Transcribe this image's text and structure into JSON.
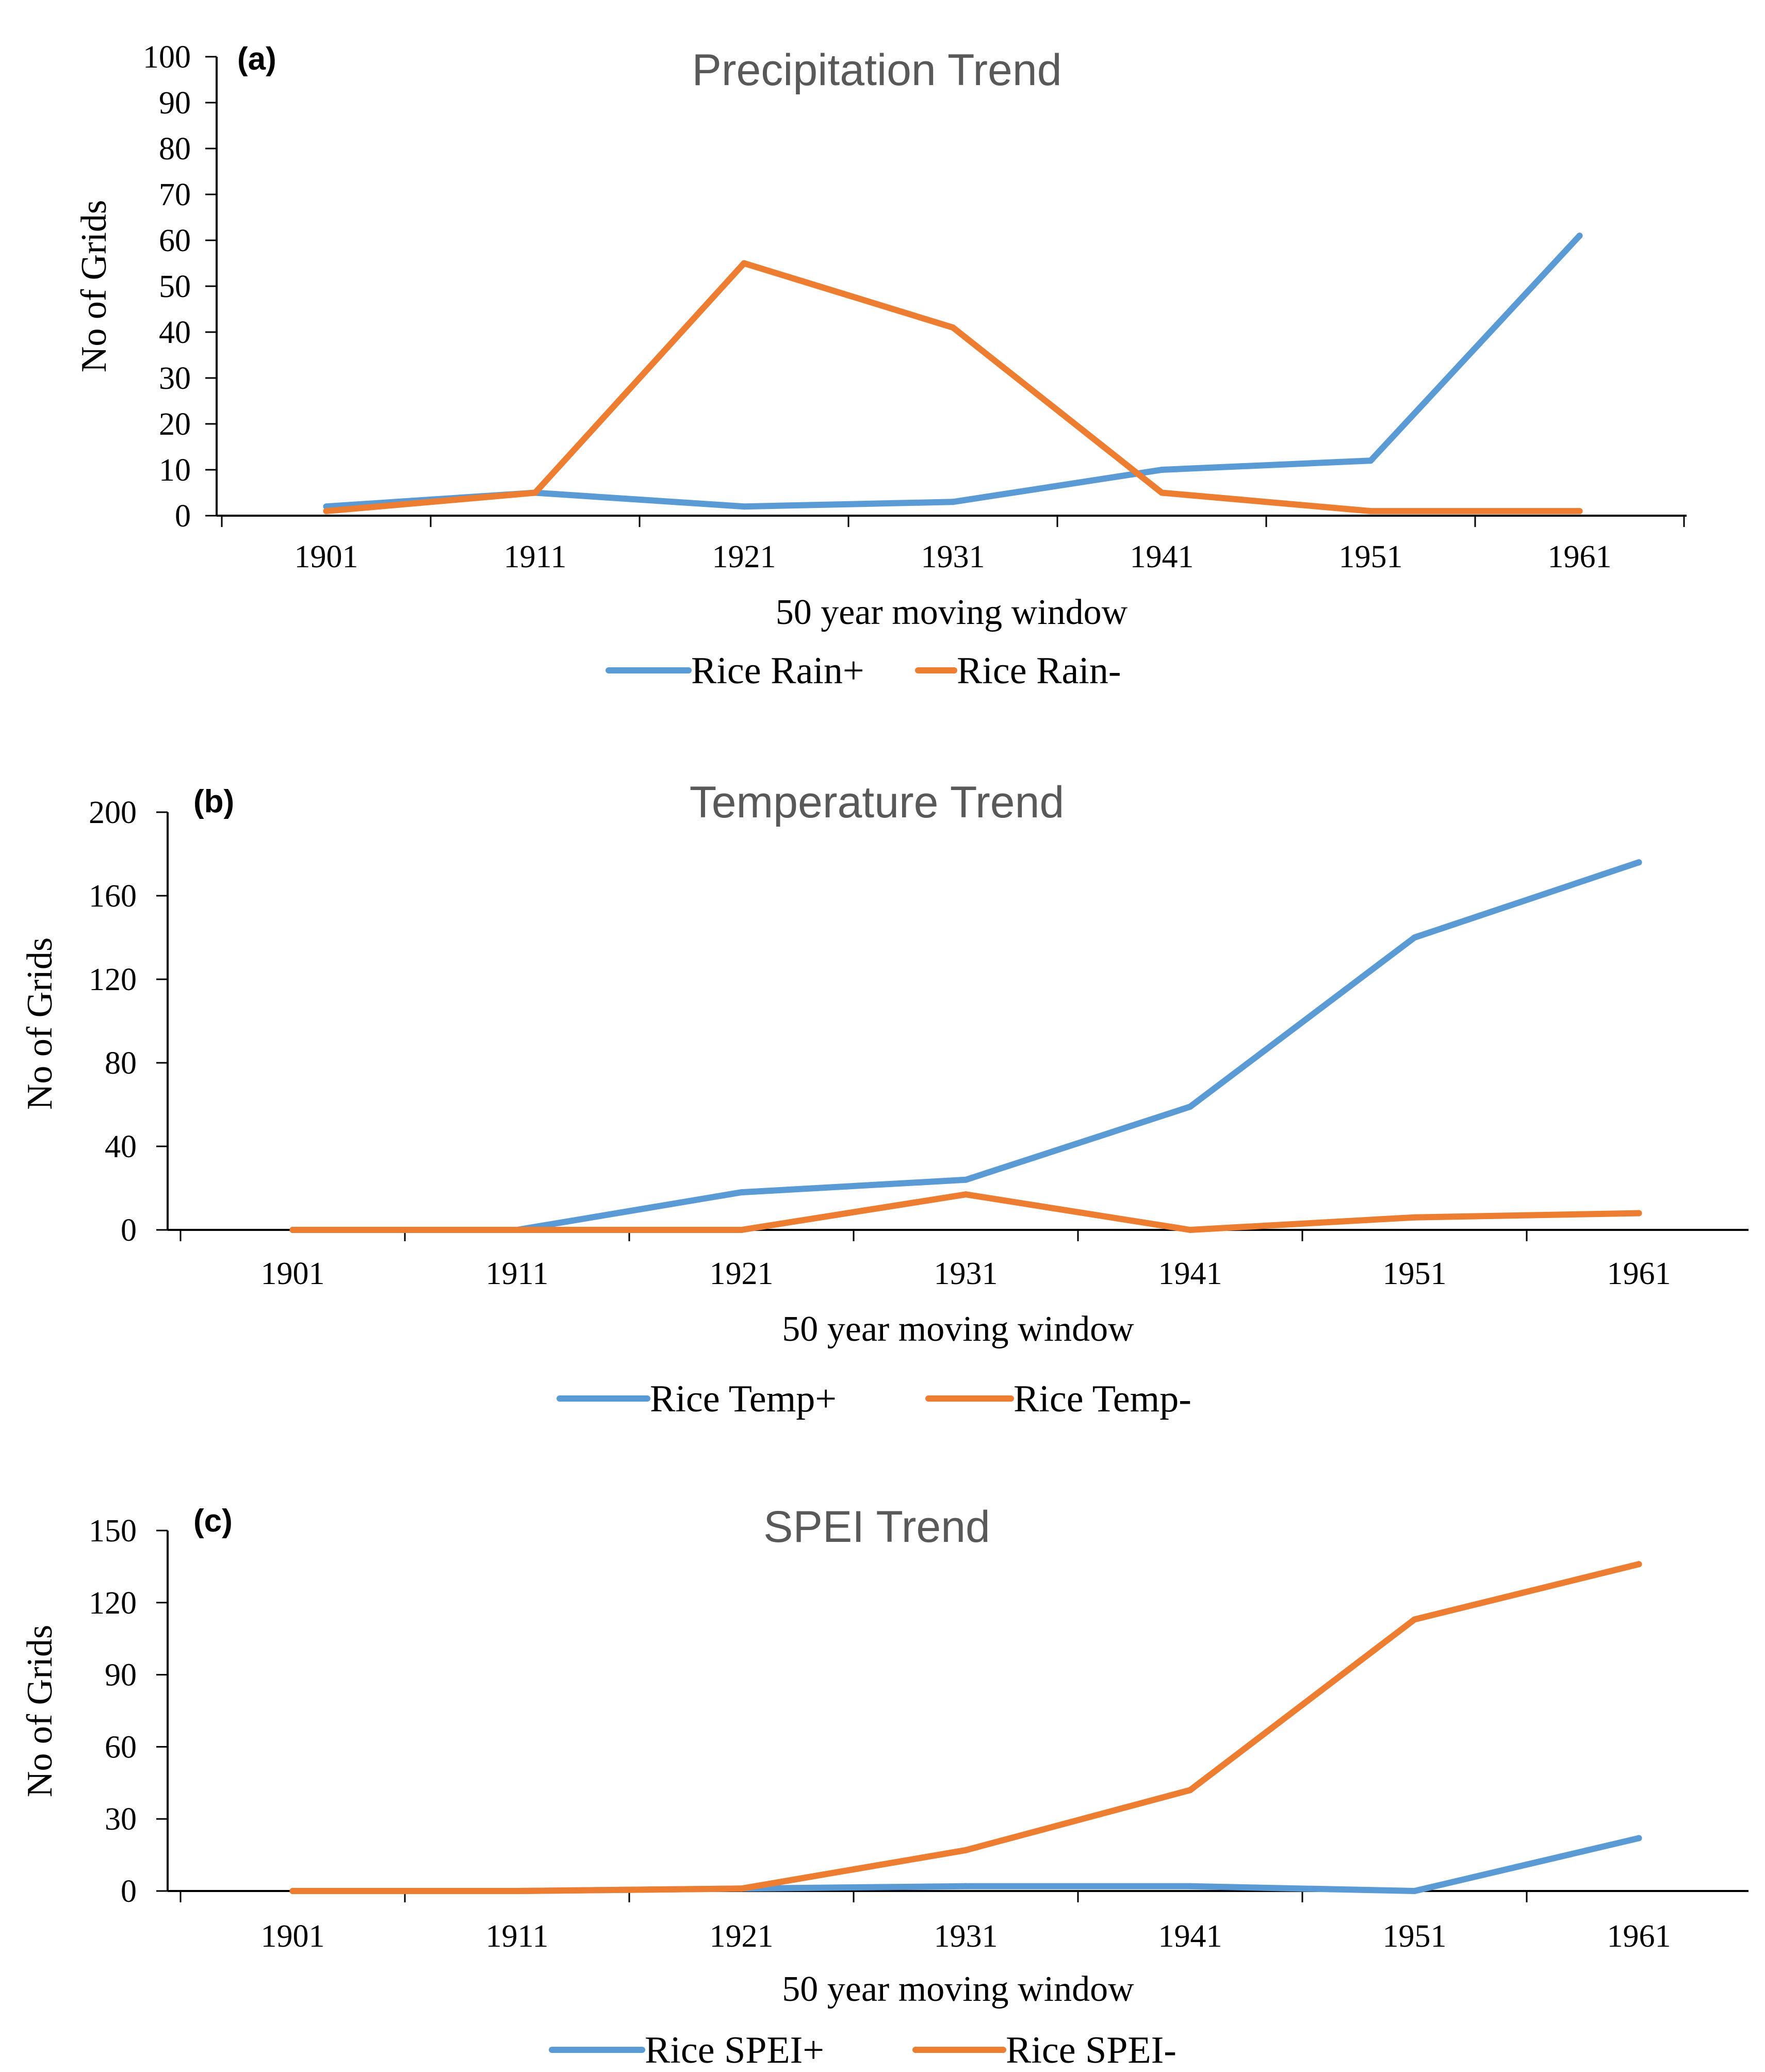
{
  "colors": {
    "positive_series": "#5B9BD5",
    "negative_series": "#ED7D31",
    "title": "#595959",
    "axis": "#000000"
  },
  "chart_data": [
    {
      "type": "line",
      "panel_label": "(a)",
      "title": "Precipitation Trend",
      "xlabel": "50 year moving window",
      "ylabel": "No of Grids",
      "categories": [
        "1901",
        "1911",
        "1921",
        "1931",
        "1941",
        "1951",
        "1961"
      ],
      "ylim": [
        0,
        100
      ],
      "yticks": [
        0,
        10,
        20,
        30,
        40,
        50,
        60,
        70,
        80,
        90,
        100
      ],
      "grid": false,
      "legend_position": "bottom",
      "series": [
        {
          "name": "Rice Rain+",
          "color": "#5B9BD5",
          "values": [
            2,
            5,
            2,
            3,
            10,
            12,
            61
          ]
        },
        {
          "name": "Rice Rain-",
          "color": "#ED7D31",
          "values": [
            1,
            5,
            55,
            41,
            5,
            1,
            1
          ]
        }
      ]
    },
    {
      "type": "line",
      "panel_label": "(b)",
      "title": "Temperature Trend",
      "xlabel": "50 year moving window",
      "ylabel": "No of Grids",
      "categories": [
        "1901",
        "1911",
        "1921",
        "1931",
        "1941",
        "1951",
        "1961"
      ],
      "ylim": [
        0,
        200
      ],
      "yticks": [
        0,
        40,
        80,
        120,
        160,
        200
      ],
      "grid": false,
      "legend_position": "bottom",
      "series": [
        {
          "name": "Rice  Temp+",
          "color": "#5B9BD5",
          "values": [
            0,
            0,
            18,
            24,
            59,
            140,
            176
          ]
        },
        {
          "name": "Rice  Temp-",
          "color": "#ED7D31",
          "values": [
            0,
            0,
            0,
            17,
            0,
            6,
            8
          ]
        }
      ]
    },
    {
      "type": "line",
      "panel_label": "(c)",
      "title": "SPEI Trend",
      "xlabel": "50 year moving window",
      "ylabel": "No of Grids",
      "categories": [
        "1901",
        "1911",
        "1921",
        "1931",
        "1941",
        "1951",
        "1961"
      ],
      "ylim": [
        0,
        150
      ],
      "yticks": [
        0,
        30,
        60,
        90,
        120,
        150
      ],
      "grid": false,
      "legend_position": "bottom",
      "series": [
        {
          "name": "Rice   SPEI+",
          "color": "#5B9BD5",
          "values": [
            0,
            0,
            1,
            2,
            2,
            0,
            22
          ]
        },
        {
          "name": "Rice   SPEI-",
          "color": "#ED7D31",
          "values": [
            0,
            0,
            1,
            17,
            42,
            113,
            136
          ]
        }
      ]
    }
  ]
}
